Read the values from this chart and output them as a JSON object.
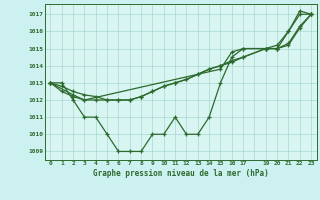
{
  "title": "Graphe pression niveau de la mer (hPa)",
  "bg_color": "#cdf0f0",
  "plot_bg_color": "#d8f5f2",
  "grid_color": "#a8d8d0",
  "line_color": "#2d6a2d",
  "xlim": [
    -0.5,
    23.5
  ],
  "ylim": [
    1008.5,
    1017.6
  ],
  "yticks": [
    1009,
    1010,
    1011,
    1012,
    1013,
    1014,
    1015,
    1016,
    1017
  ],
  "xtick_labels": [
    "0",
    "1",
    "2",
    "3",
    "4",
    "5",
    "6",
    "7",
    "8",
    "9",
    "10",
    "11",
    "12",
    "13",
    "14",
    "15",
    "16",
    "17",
    "",
    "19",
    "20",
    "21",
    "22",
    "23"
  ],
  "x_positions": [
    0,
    1,
    2,
    3,
    4,
    5,
    6,
    7,
    8,
    9,
    10,
    11,
    12,
    13,
    14,
    15,
    16,
    17,
    18,
    19,
    20,
    21,
    22,
    23
  ],
  "series1_x": [
    0,
    1,
    2,
    3,
    4,
    5,
    6,
    7,
    8,
    9,
    10,
    11,
    12,
    13,
    14,
    15,
    16,
    17,
    19,
    20,
    21,
    22,
    23
  ],
  "series1_y": [
    1013.0,
    1013.0,
    1012.0,
    1011.0,
    1011.0,
    1010.0,
    1009.0,
    1009.0,
    1009.0,
    1010.0,
    1010.0,
    1011.0,
    1010.0,
    1010.0,
    1011.0,
    1013.0,
    1014.5,
    1015.0,
    1015.0,
    1015.0,
    1016.0,
    1017.0,
    1017.0
  ],
  "series2_x": [
    0,
    2,
    3,
    15,
    16,
    17,
    19,
    20,
    21,
    22,
    23
  ],
  "series2_y": [
    1013.0,
    1012.3,
    1012.0,
    1013.8,
    1014.8,
    1015.0,
    1015.0,
    1015.2,
    1016.0,
    1017.2,
    1017.0
  ],
  "series3_x": [
    0,
    1,
    2,
    3,
    4,
    5,
    6,
    7,
    8,
    9,
    10,
    11,
    12,
    13,
    14,
    15,
    16,
    17,
    19,
    20,
    21,
    22,
    23
  ],
  "series3_y": [
    1013.0,
    1012.5,
    1012.2,
    1012.0,
    1012.0,
    1012.0,
    1012.0,
    1012.0,
    1012.2,
    1012.5,
    1012.8,
    1013.0,
    1013.2,
    1013.5,
    1013.8,
    1014.0,
    1014.2,
    1014.5,
    1015.0,
    1015.0,
    1015.2,
    1016.2,
    1017.0
  ],
  "series4_x": [
    0,
    1,
    2,
    3,
    4,
    5,
    6,
    7,
    8,
    9,
    10,
    11,
    12,
    13,
    14,
    15,
    16,
    17,
    19,
    20,
    21,
    22,
    23
  ],
  "series4_y": [
    1013.0,
    1012.8,
    1012.5,
    1012.3,
    1012.2,
    1012.0,
    1012.0,
    1012.0,
    1012.2,
    1012.5,
    1012.8,
    1013.0,
    1013.2,
    1013.5,
    1013.8,
    1014.0,
    1014.3,
    1014.5,
    1015.0,
    1015.0,
    1015.3,
    1016.3,
    1017.0
  ]
}
